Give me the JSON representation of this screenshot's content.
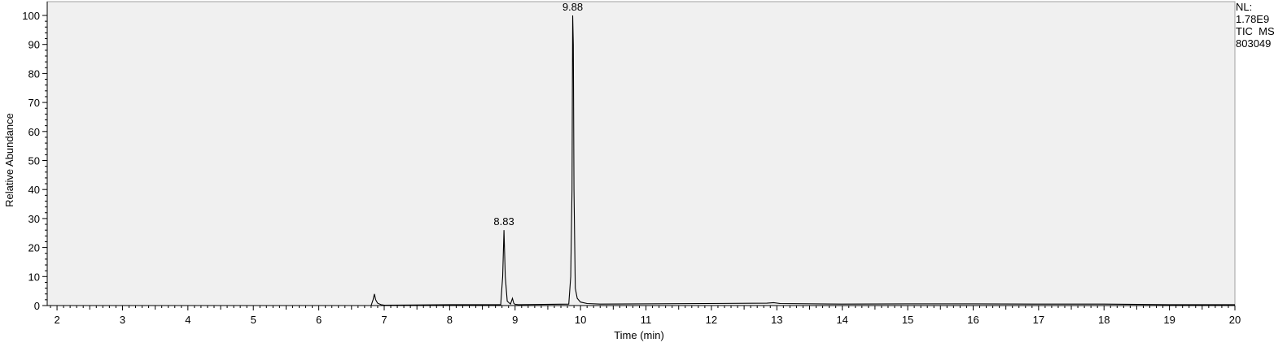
{
  "chart_data": {
    "type": "line",
    "xlabel": "Time (min)",
    "ylabel": "Relative Abundance",
    "xlim": [
      1.85,
      20.0
    ],
    "ylim": [
      0,
      100
    ],
    "x_ticks": [
      2,
      3,
      4,
      5,
      6,
      7,
      8,
      9,
      10,
      11,
      12,
      13,
      14,
      15,
      16,
      17,
      18,
      19,
      20
    ],
    "y_ticks": [
      0,
      10,
      20,
      30,
      40,
      50,
      60,
      70,
      80,
      90,
      100
    ],
    "grid": false,
    "background_color": "#f0f0f0",
    "line_color": "#000000",
    "series": [
      {
        "x": [
          1.85,
          6.8,
          6.83,
          6.85,
          6.87,
          6.9,
          6.95,
          7.0,
          8.0,
          8.78,
          8.81,
          8.83,
          8.85,
          8.88,
          8.93,
          8.96,
          8.98,
          9.0,
          9.05,
          9.82,
          9.85,
          9.87,
          9.88,
          9.89,
          9.9,
          9.92,
          9.95,
          10.0,
          10.1,
          10.3,
          12.85,
          12.95,
          13.05,
          14.0,
          15.0,
          16.0,
          17.0,
          18.0,
          19.0,
          20.0
        ],
        "y": [
          0.0,
          0.0,
          2.0,
          4.0,
          2.0,
          0.8,
          0.3,
          0.1,
          0.3,
          0.3,
          10.0,
          26.0,
          10.0,
          1.5,
          0.5,
          2.5,
          0.8,
          0.4,
          0.3,
          0.5,
          10.0,
          40.0,
          100.0,
          90.0,
          40.0,
          6.0,
          2.5,
          1.2,
          0.7,
          0.5,
          0.8,
          1.0,
          0.7,
          0.5,
          0.6,
          0.6,
          0.5,
          0.5,
          0.3,
          0.3
        ]
      }
    ],
    "peaks": [
      {
        "label": "8.83",
        "x": 8.83,
        "y": 26.0
      },
      {
        "label": "9.88",
        "x": 9.88,
        "y": 100.0
      }
    ]
  },
  "info": {
    "line1": "NL:",
    "line2": "1.78E9",
    "line3": "TIC  MS",
    "line4": "803049"
  }
}
